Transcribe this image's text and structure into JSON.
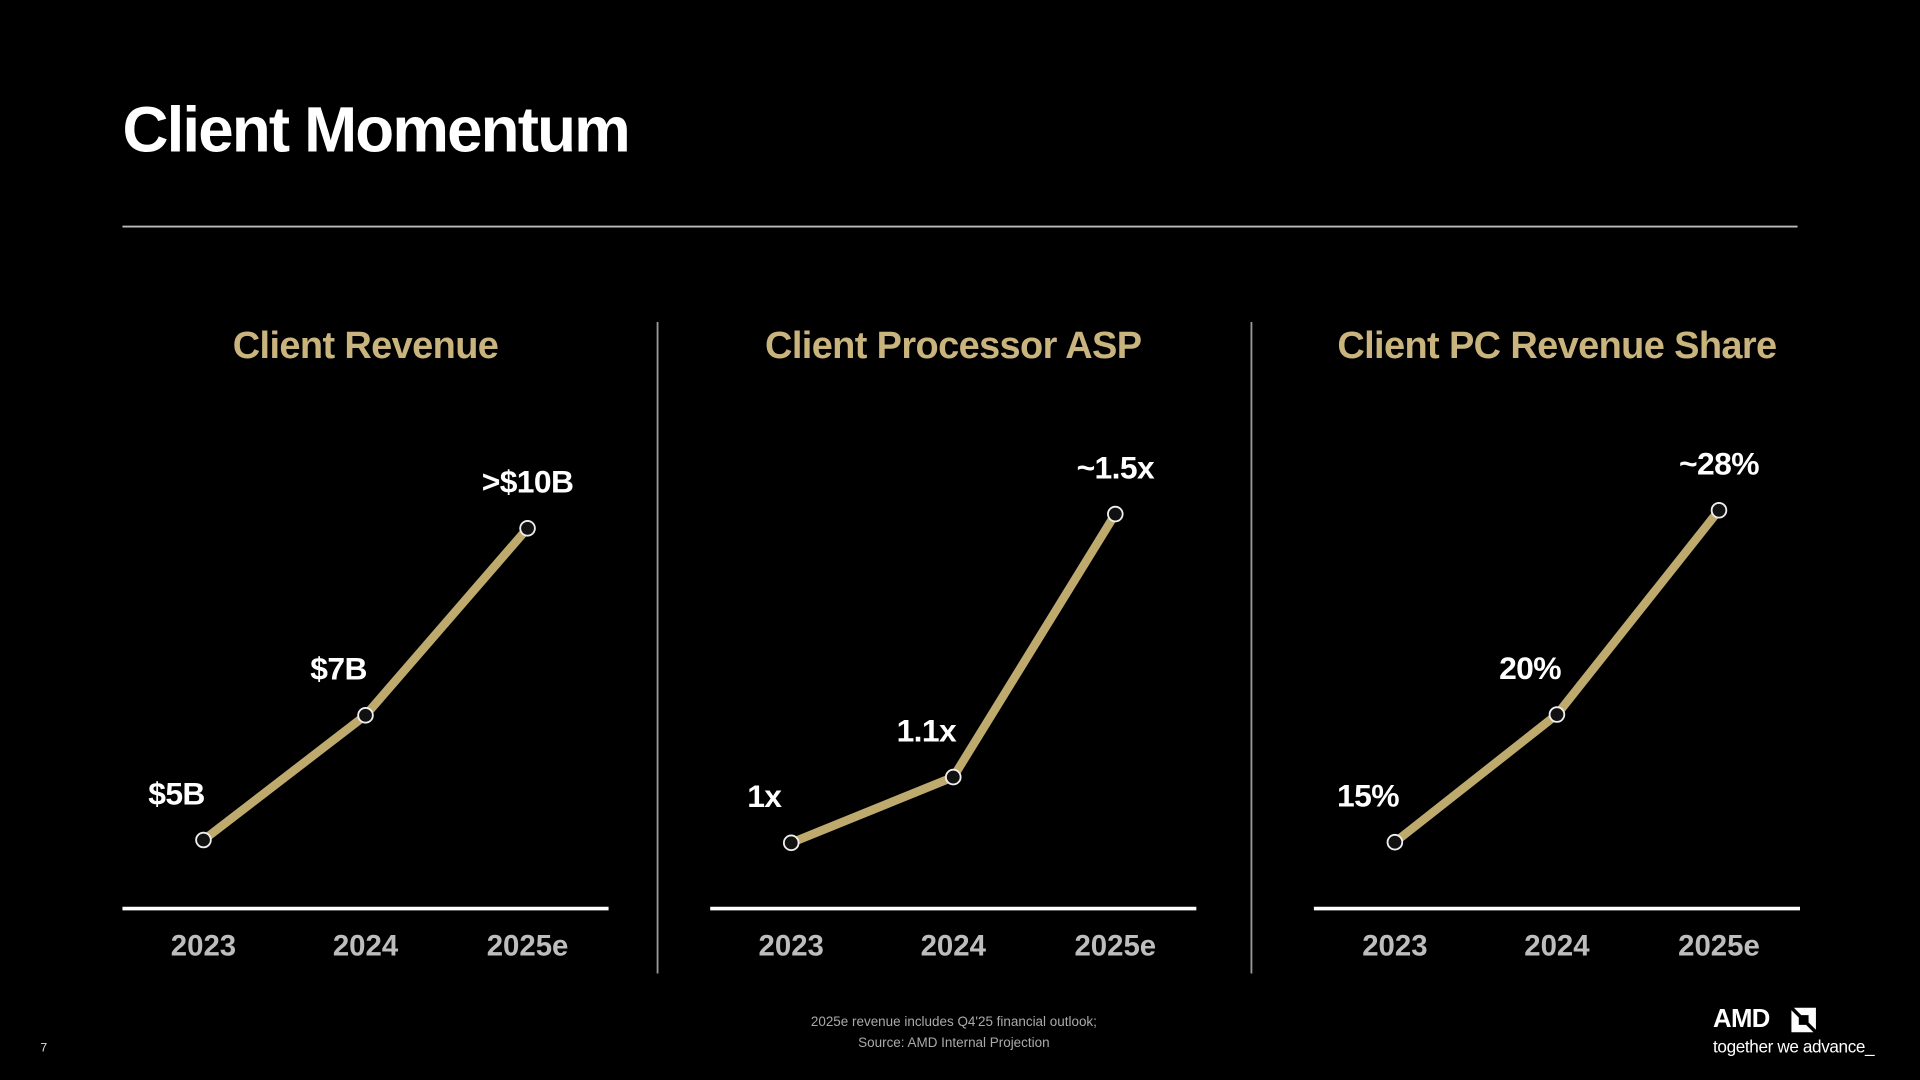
{
  "title": "Client Momentum",
  "footnote": [
    "2025e revenue includes Q4'25 financial outlook;",
    "Source: AMD Internal Projection"
  ],
  "page_number": "7",
  "brand": {
    "logo": "AMD",
    "tagline": "together we advance_"
  },
  "chart_data": [
    {
      "type": "line",
      "title": "Client Revenue",
      "categories": [
        "2023",
        "2024",
        "2025e"
      ],
      "values": [
        5,
        7,
        10
      ],
      "value_labels": [
        "$5B",
        "$7B",
        ">$10B"
      ],
      "color": "#bfaa6e",
      "ylim": [
        3.9,
        11.6
      ]
    },
    {
      "type": "line",
      "title": "Client Processor ASP",
      "categories": [
        "2023",
        "2024",
        "2025e"
      ],
      "values": [
        1,
        1.1,
        1.5
      ],
      "value_labels": [
        "1x",
        "1.1x",
        "~1.5x"
      ],
      "color": "#bfaa6e",
      "ylim": [
        0.9,
        1.63
      ]
    },
    {
      "type": "line",
      "title": "Client PC Revenue Share",
      "categories": [
        "2023",
        "2024",
        "2025e"
      ],
      "values": [
        15,
        20,
        28
      ],
      "value_labels": [
        "15%",
        "20%",
        "~28%"
      ],
      "color": "#bfaa6e",
      "ylim": [
        12.4,
        31.2
      ]
    }
  ]
}
